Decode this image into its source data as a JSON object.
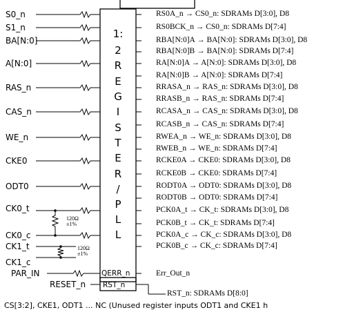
{
  "inputs": [
    "S0_n",
    "S1_n",
    "BA[N:0]",
    "A[N:0]",
    "RAS_n",
    "CAS_n",
    "WE_n",
    "CKE0",
    "ODT0",
    "CK0_t",
    "CK0_c",
    "CK1_t",
    "CK1_c",
    "PAR_IN",
    "RESET_n"
  ],
  "outputs": [
    "RS0A_n → CS0_n: SDRAMs D[3:0], D8",
    "RS0BCK_n → CS0_n: SDRAMs D[7:4]",
    "RBA[N:0]A  → BA[N:0]: SDRAMs D[3:0], D8",
    "RBA[N:0]B → BA[N:0]: SDRAMs D[7:4]",
    "RA[N:0]A  → A[N:0]: SDRAMs D[3:0], D8",
    "RA[N:0]B  → A[N:0]: SDRAMs D[7:4]",
    "RRASA_n → RAS_n: SDRAMs D[3:0], D8",
    "RRASB_n → RAS_n: SDRAMs D[7:4]",
    "RCASA_n → CAS_n: SDRAMs D[3:0], D8",
    "RCASB_n → CAS_n: SDRAMs D[7:4]",
    "RWEA_n → WE_n: SDRAMs D[3:0], D8",
    "RWEB_n → WE_n: SDRAMs D[7:4]",
    "RCKE0A → CKE0: SDRAMs D[3:0], D8",
    "RCKE0B → CKE0: SDRAMs D[7:4]",
    "RODT0A → ODT0: SDRAMs D[3:0], D8",
    "RODT0B → ODT0: SDRAMs D[7:4]",
    "PCK0A_t → CK_t: SDRAMs D[3:0], D8",
    "PCK0B_t → CK_t: SDRAMs D[7:4]",
    "PCK0A_c → CK_c: SDRAMs D[3:0], D8",
    "PCK0B_c → CK_c: SDRAMs D[7:4]"
  ],
  "chip_label": [
    "1:",
    "2",
    "R",
    "E",
    "G",
    "I",
    "S",
    "T",
    "E",
    "R",
    "/",
    "P",
    "L",
    "L"
  ],
  "pins": {
    "qerr": "QERR_n",
    "rst": "RST_n"
  },
  "err_out": "Err_Out_n",
  "rst_out": "RST_n: SDRAMs D[8:0]",
  "resistor_label": "120Ω\n±1%",
  "footnote": "CS[3:2], CKE1, ODT1 ... NC (Unused register inputs ODT1 and CKE1 h"
}
